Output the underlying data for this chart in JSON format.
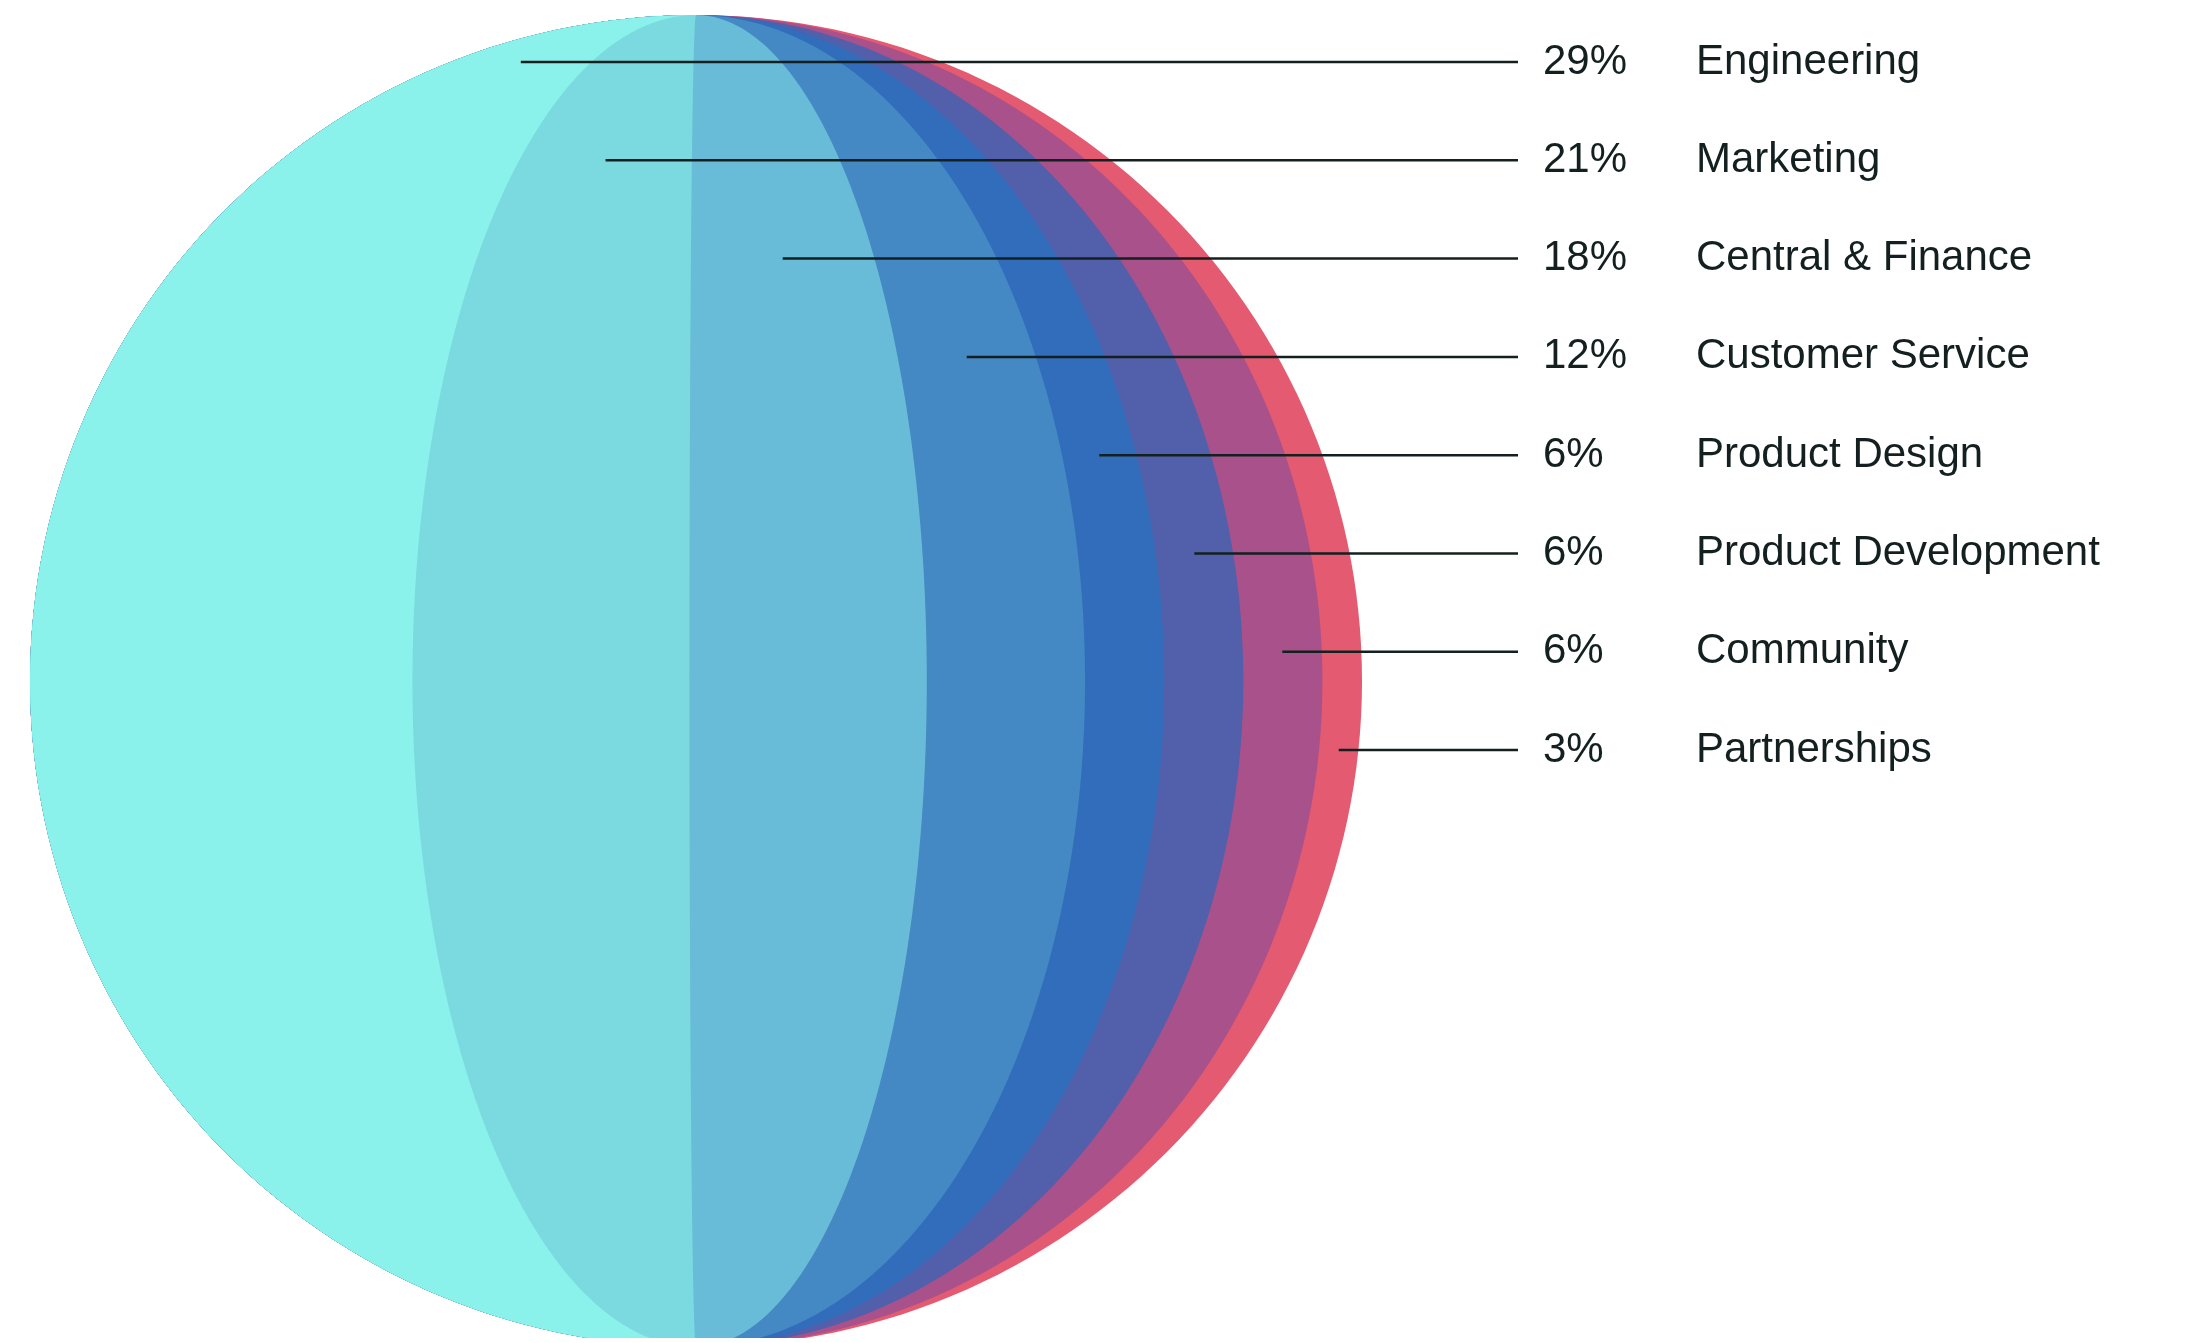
{
  "chart_data": {
    "type": "other",
    "categories": [
      "Engineering",
      "Marketing",
      "Central & Finance",
      "Customer Service",
      "Product Design",
      "Product Development",
      "Community",
      "Partnerships"
    ],
    "values": [
      29,
      21,
      18,
      12,
      6,
      6,
      6,
      3
    ],
    "value_labels": [
      "29%",
      "21%",
      "18%",
      "12%",
      "6%",
      "6%",
      "6%",
      "3%"
    ],
    "colors": [
      "#8af2ea",
      "#7adae0",
      "#69bcd8",
      "#4488c4",
      "#326dbb",
      "#525fab",
      "#a9518a",
      "#e45a70"
    ]
  }
}
